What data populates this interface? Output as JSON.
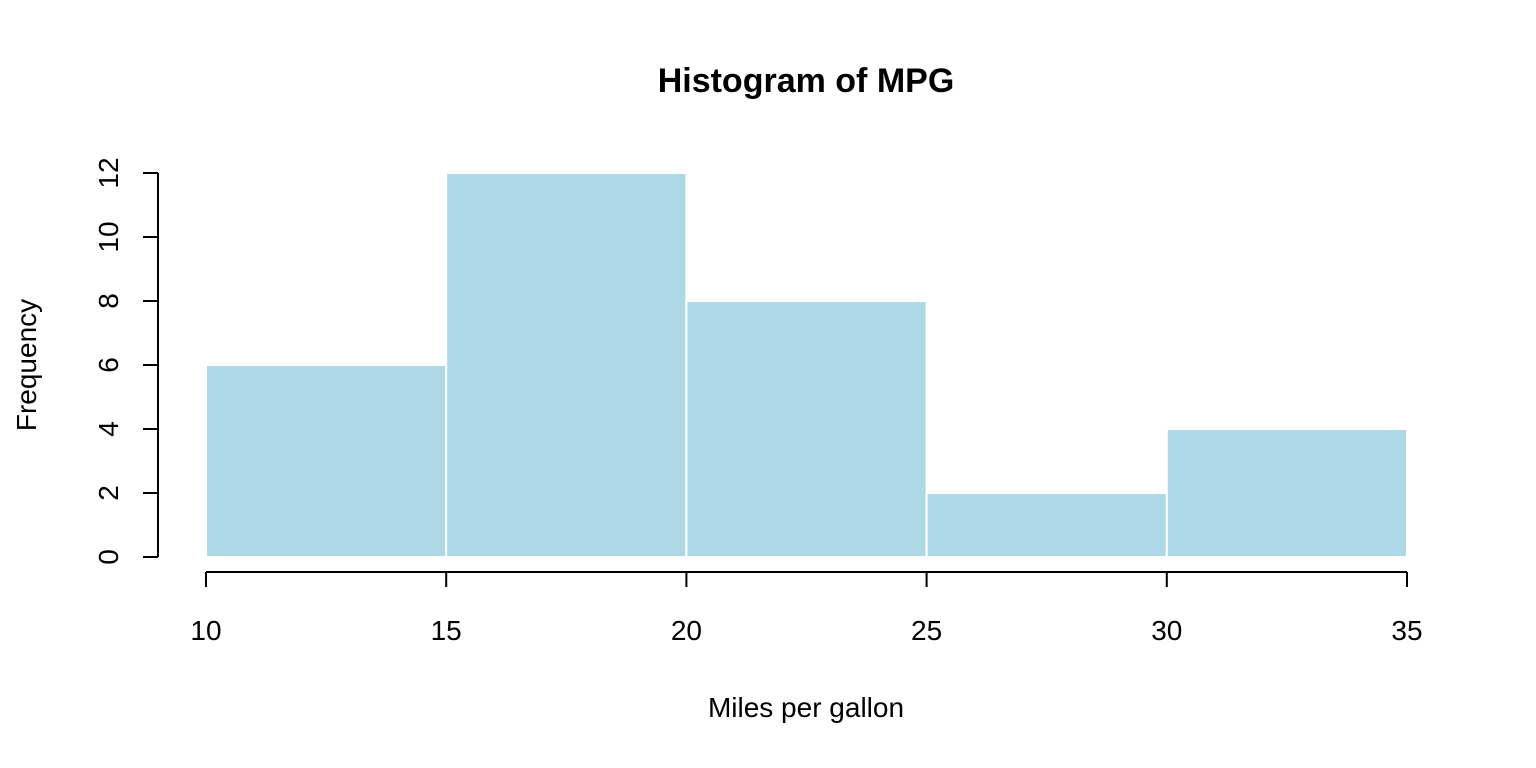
{
  "chart_data": {
    "type": "bar",
    "subtype": "histogram",
    "title": "Histogram of MPG",
    "xlabel": "Miles per gallon",
    "ylabel": "Frequency",
    "bins": [
      {
        "start": 10,
        "end": 15,
        "value": 6
      },
      {
        "start": 15,
        "end": 20,
        "value": 12
      },
      {
        "start": 20,
        "end": 25,
        "value": 8
      },
      {
        "start": 25,
        "end": 30,
        "value": 2
      },
      {
        "start": 30,
        "end": 35,
        "value": 4
      }
    ],
    "xlim": [
      10,
      35
    ],
    "ylim": [
      0,
      12
    ],
    "xticks": [
      10,
      15,
      20,
      25,
      30,
      35
    ],
    "yticks": [
      0,
      2,
      4,
      6,
      8,
      10,
      12
    ],
    "grid": false,
    "bar_color": "#add8e6",
    "bar_border_color": "#ffffff"
  }
}
